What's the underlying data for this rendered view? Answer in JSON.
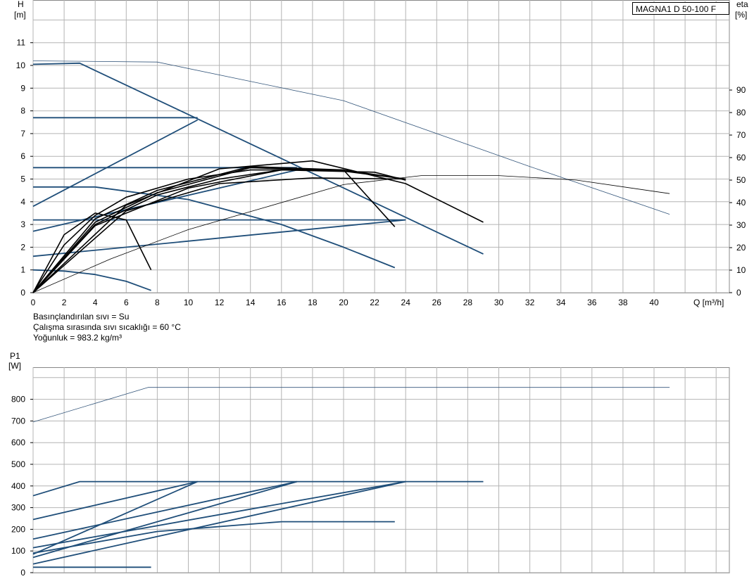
{
  "model_label": "MAGNA1 D 50-100 F",
  "notes": {
    "line1": "Basınçlandırılan sıvı = Su",
    "line2": "Çalışma sırasında sıvı sıcaklığı = 60 °C",
    "line3": "Yoğunluk = 983.2 kg/m³"
  },
  "colors": {
    "curve_blue": "#1f4e79",
    "curve_black": "#000000",
    "grid": "#b4b4b4"
  },
  "chart_data": [
    {
      "id": "head",
      "type": "line",
      "title": "",
      "ylabel": "H\n[m]",
      "y2label": "eta\n[%]",
      "xlabel": "Q [m³/h]",
      "xlim": [
        0,
        42
      ],
      "ylim": [
        0,
        12
      ],
      "y2lim": [
        0,
        100
      ],
      "x_ticks": [
        0,
        2,
        4,
        6,
        8,
        10,
        12,
        14,
        16,
        18,
        20,
        22,
        24,
        26,
        28,
        30,
        32,
        34,
        36,
        38,
        40
      ],
      "y_ticks": [
        0,
        1,
        2,
        3,
        4,
        5,
        6,
        7,
        8,
        9,
        10,
        11
      ],
      "y2_ticks": [
        0,
        10,
        20,
        30,
        40,
        50,
        60,
        70,
        80,
        90
      ],
      "grid": true,
      "series": [
        {
          "style": "blue",
          "x": [
            0,
            3,
            29
          ],
          "y": [
            10.05,
            10.1,
            1.7
          ]
        },
        {
          "style": "blue",
          "x": [
            0,
            10.6
          ],
          "y": [
            7.7,
            7.7
          ]
        },
        {
          "style": "blue",
          "x": [
            0,
            10.6
          ],
          "y": [
            3.8,
            7.6
          ]
        },
        {
          "style": "blue",
          "x": [
            0,
            17
          ],
          "y": [
            5.5,
            5.5
          ]
        },
        {
          "style": "blue",
          "x": [
            0,
            17
          ],
          "y": [
            2.7,
            5.4
          ]
        },
        {
          "style": "blue",
          "x": [
            0,
            24
          ],
          "y": [
            3.2,
            3.2
          ]
        },
        {
          "style": "blue",
          "x": [
            0,
            24
          ],
          "y": [
            1.6,
            3.2
          ]
        },
        {
          "style": "blue",
          "x": [
            0,
            4,
            10,
            16,
            20,
            23.3
          ],
          "y": [
            4.65,
            4.65,
            4.1,
            3.0,
            2.0,
            1.1
          ]
        },
        {
          "style": "blue",
          "x": [
            0,
            2,
            4,
            6,
            7.6
          ],
          "y": [
            1.0,
            0.95,
            0.8,
            0.5,
            0.1
          ]
        },
        {
          "style": "thin",
          "x": [
            0,
            8,
            20,
            32,
            41
          ],
          "y": [
            10.2,
            10.15,
            8.45,
            5.55,
            3.45
          ]
        },
        {
          "style": "black",
          "x": [
            0,
            2,
            4,
            6,
            7.6
          ],
          "y": [
            0,
            2.55,
            3.5,
            3.2,
            1.0
          ]
        },
        {
          "style": "black",
          "x": [
            0,
            2,
            4,
            6,
            10,
            14,
            20,
            23.3
          ],
          "y": [
            0,
            2.1,
            3.4,
            4.2,
            5.0,
            5.4,
            5.4,
            2.9
          ]
        },
        {
          "style": "black",
          "x": [
            0,
            4,
            8,
            14,
            20,
            24
          ],
          "y": [
            0,
            3.25,
            4.5,
            5.55,
            5.4,
            5.0
          ]
        },
        {
          "style": "black",
          "x": [
            0,
            4,
            8,
            14,
            20,
            24
          ],
          "y": [
            0,
            3.1,
            4.4,
            5.5,
            5.35,
            5.0
          ]
        },
        {
          "style": "black",
          "x": [
            0,
            4,
            10,
            16,
            22,
            24
          ],
          "y": [
            0,
            2.95,
            4.6,
            5.4,
            5.3,
            4.95
          ]
        },
        {
          "style": "black",
          "x": [
            0,
            6,
            12,
            18,
            24
          ],
          "y": [
            0,
            3.6,
            4.8,
            5.05,
            5.0
          ]
        },
        {
          "style": "black",
          "x": [
            0,
            6,
            12,
            18,
            24,
            29
          ],
          "y": [
            0,
            3.85,
            5.45,
            5.8,
            4.8,
            3.1
          ]
        },
        {
          "style": "black",
          "x": [
            0,
            4,
            8,
            12,
            16
          ],
          "y": [
            0,
            3.0,
            4.3,
            5.0,
            5.4
          ]
        },
        {
          "style": "thin_eta",
          "x": [
            0,
            5,
            10,
            15,
            20,
            25,
            30,
            35,
            41
          ],
          "y": [
            0,
            15,
            28,
            38,
            48,
            52,
            52,
            50,
            44
          ]
        }
      ]
    },
    {
      "id": "power",
      "type": "line",
      "title": "",
      "ylabel": "P1\n[W]",
      "xlim": [
        0,
        42
      ],
      "ylim": [
        0,
        900
      ],
      "y_ticks": [
        0,
        100,
        200,
        300,
        400,
        500,
        600,
        700,
        800
      ],
      "grid": true,
      "series": [
        {
          "style": "thin",
          "x": [
            0,
            7.4,
            41
          ],
          "y": [
            695,
            855,
            855
          ]
        },
        {
          "style": "blue",
          "x": [
            0,
            3,
            29
          ],
          "y": [
            355,
            420,
            420
          ]
        },
        {
          "style": "blue",
          "x": [
            0,
            10.6
          ],
          "y": [
            245,
            420
          ]
        },
        {
          "style": "blue",
          "x": [
            0,
            10.6
          ],
          "y": [
            85,
            420
          ]
        },
        {
          "style": "blue",
          "x": [
            0,
            17
          ],
          "y": [
            155,
            420
          ]
        },
        {
          "style": "blue",
          "x": [
            0,
            17
          ],
          "y": [
            70,
            420
          ]
        },
        {
          "style": "blue",
          "x": [
            0,
            24
          ],
          "y": [
            115,
            420
          ]
        },
        {
          "style": "blue",
          "x": [
            0,
            24
          ],
          "y": [
            40,
            420
          ]
        },
        {
          "style": "blue",
          "x": [
            0,
            8,
            16,
            23.3
          ],
          "y": [
            90,
            190,
            235,
            235
          ]
        },
        {
          "style": "blue",
          "x": [
            0,
            7.6
          ],
          "y": [
            25,
            25
          ]
        }
      ]
    }
  ]
}
